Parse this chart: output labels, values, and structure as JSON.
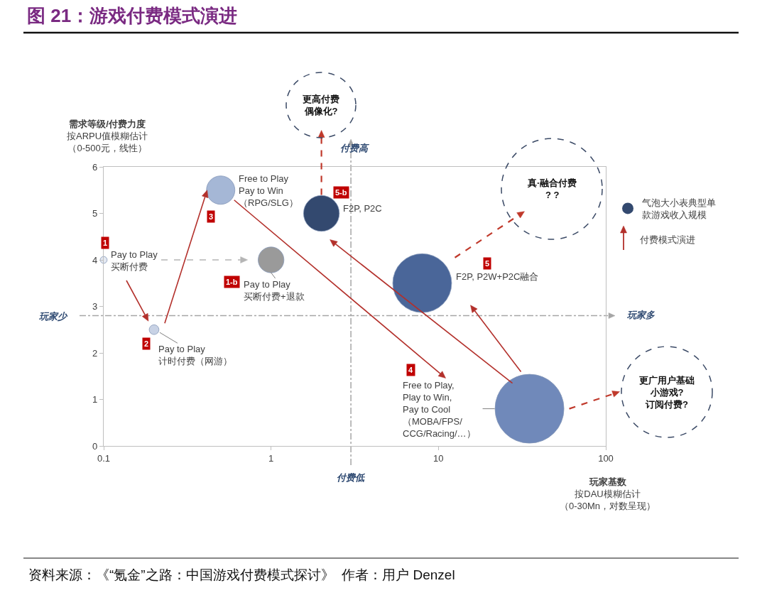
{
  "chart_data": {
    "type": "bubble",
    "title": "图 21：游戏付费模式演进",
    "xlabel": "玩家基数按DAU模糊估计（0-30Mn，对数呈现）",
    "ylabel": "需求等级/付费力度按ARPU值模糊估计（0-500元，线性）",
    "log": "x",
    "xlim": [
      0.1,
      100
    ],
    "ylim": [
      0,
      6
    ],
    "xticks": [
      0.1,
      1,
      10,
      100
    ],
    "yticks": [
      0,
      1,
      2,
      3,
      4,
      5,
      6
    ],
    "legend": "right",
    "series": [
      {
        "name": "气泡大小表典型单款游戏收入规模",
        "color": "#33496f",
        "x": [
          0.1,
          1,
          0.2,
          0.5,
          35,
          8,
          2
        ],
        "values": [
          4,
          4,
          2.5,
          5.5,
          0.8,
          3.5,
          5
        ],
        "sizes": [
          0.01,
          0.14,
          0.02,
          0.17,
          1,
          0.73,
          0.27
        ],
        "colors": [
          "#e4e9f2",
          "#9a9a9a",
          "#c8d2e5",
          "#a5b7d6",
          "#7089ba",
          "#4a6699",
          "#33496f"
        ]
      }
    ],
    "ref_lines": [
      {
        "axis": "y",
        "value": 2.8,
        "label": "玩家少",
        "color": "#a6a6a6",
        "line_style": "dashdot"
      },
      {
        "axis": "x",
        "value": 3,
        "label": "付费低",
        "color": "#a6a6a6",
        "line_style": "dashdot"
      }
    ],
    "annotations": [
      {
        "text": "Pay to Play\n买断付费",
        "x": 0.1,
        "y": 4
      },
      {
        "text": "1",
        "x": 0.1,
        "y": 4
      },
      {
        "text": "Pay to Play\n买断付费+退款",
        "x": 1,
        "y": 4
      },
      "1-b",
      {
        "text": "Pay to Play\n计时付费（网游）",
        "x": 0.2,
        "y": 2.5
      },
      {
        "text": "2",
        "x": 0.2,
        "y": 2.5
      },
      {
        "text": "Free to Play\nPay to Win\n（RPG/SLG）",
        "x": 0.5,
        "y": 5.5
      },
      {
        "text": "3",
        "x": 0.5,
        "y": 5.5
      },
      {
        "text": "F2P, P2C",
        "x": 2,
        "y": 5
      },
      {
        "text": "5-b",
        "x": 2,
        "y": 5
      },
      "F2P, P2W+P2C融合",
      "5",
      "Free to Play,\nPlay to Win,\nPay to Cool\n（MOBA/FPS/\nCCG/Racing/…）",
      "4",
      "更高付费偶像化?",
      "真·融合付费\n? ?",
      "更广用户基础小游戏?\n订阅付费?",
      "付费高",
      "玩家多",
      "付费模式演进",
      "资料来源：《“氪金”之路：中国游戏付费模式探讨》  作者：用户 Denzel"
    ]
  }
}
